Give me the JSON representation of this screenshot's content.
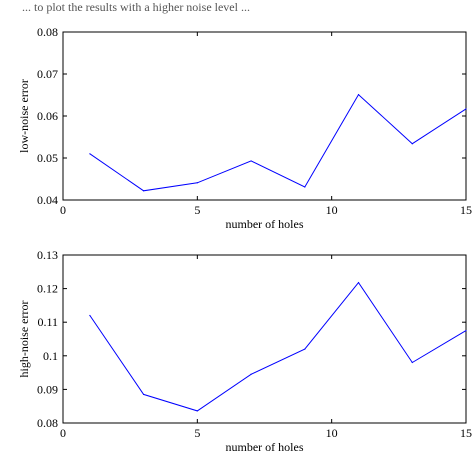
{
  "caption_fragment": "... to plot the results with a higher noise level ...",
  "chart_data": [
    {
      "type": "line",
      "xlabel": "number of holes",
      "ylabel": "low-noise error",
      "xlim": [
        0,
        15
      ],
      "ylim": [
        0.04,
        0.08
      ],
      "xticks": [
        0,
        5,
        10,
        15
      ],
      "xtick_labels": [
        "0",
        "5",
        "10",
        "15"
      ],
      "yticks": [
        0.04,
        0.05,
        0.06,
        0.07,
        0.08
      ],
      "ytick_labels": [
        "0.04",
        "0.05",
        "0.06",
        "0.07",
        "0.08"
      ],
      "grid": false,
      "series": [
        {
          "color": "#0000ff",
          "x": [
            1,
            3,
            5,
            7,
            9,
            11,
            13,
            15
          ],
          "y": [
            0.051,
            0.0422,
            0.0441,
            0.0493,
            0.0431,
            0.0651,
            0.0534,
            0.0617
          ]
        }
      ]
    },
    {
      "type": "line",
      "xlabel": "number of holes",
      "ylabel": "high-noise error",
      "xlim": [
        0,
        15
      ],
      "ylim": [
        0.08,
        0.13
      ],
      "xticks": [
        0,
        5,
        10,
        15
      ],
      "xtick_labels": [
        "0",
        "5",
        "10",
        "15"
      ],
      "yticks": [
        0.08,
        0.09,
        0.1,
        0.11,
        0.12,
        0.13
      ],
      "ytick_labels": [
        "0.08",
        "0.09",
        "0.1",
        "0.11",
        "0.12",
        "0.13"
      ],
      "grid": false,
      "series": [
        {
          "color": "#0000ff",
          "x": [
            1,
            3,
            5,
            7,
            9,
            11,
            13,
            15
          ],
          "y": [
            0.112,
            0.0885,
            0.0836,
            0.0945,
            0.102,
            0.1218,
            0.098,
            0.1075
          ]
        }
      ]
    }
  ]
}
